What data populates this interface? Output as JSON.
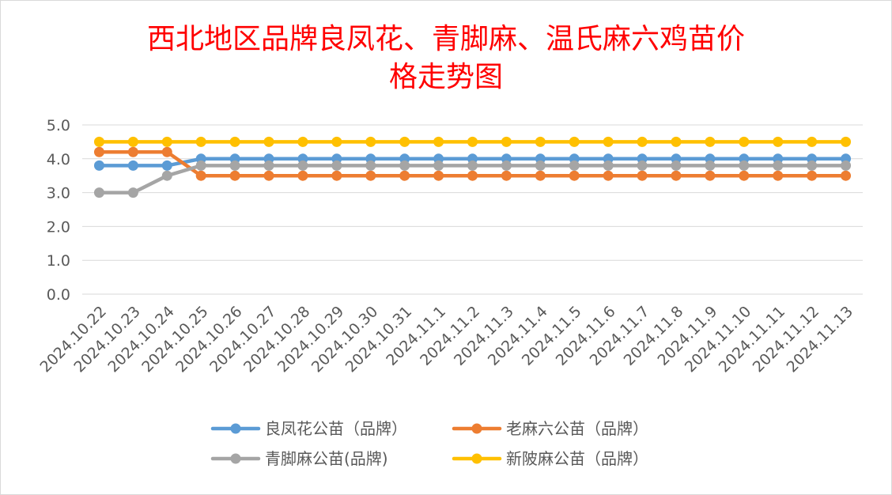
{
  "chart_data": {
    "type": "line",
    "title_lines": [
      "西北地区品牌良凤花、青脚麻、温氏麻六鸡苗价",
      "格走势图"
    ],
    "x": [
      "2024.10.22",
      "2024.10.23",
      "2024.10.24",
      "2024.10.25",
      "2024.10.26",
      "2024.10.27",
      "2024.10.28",
      "2024.10.29",
      "2024.10.30",
      "2024.10.31",
      "2024.11.1",
      "2024.11.2",
      "2024.11.3",
      "2024.11.4",
      "2024.11.5",
      "2024.11.6",
      "2024.11.7",
      "2024.11.8",
      "2024.11.9",
      "2024.11.10",
      "2024.11.11",
      "2024.11.12",
      "2024.11.13"
    ],
    "y_ticks": [
      "0.0",
      "1.0",
      "2.0",
      "3.0",
      "4.0",
      "5.0"
    ],
    "ylim": [
      0,
      5
    ],
    "grid": true,
    "legend_position": "bottom",
    "series": [
      {
        "name": "良凤花公苗（品牌）",
        "color": "#5b9bd5",
        "values": [
          3.8,
          3.8,
          3.8,
          4.0,
          4.0,
          4.0,
          4.0,
          4.0,
          4.0,
          4.0,
          4.0,
          4.0,
          4.0,
          4.0,
          4.0,
          4.0,
          4.0,
          4.0,
          4.0,
          4.0,
          4.0,
          4.0,
          4.0
        ]
      },
      {
        "name": "老麻六公苗（品牌）",
        "color": "#ed7d31",
        "values": [
          4.2,
          4.2,
          4.2,
          3.5,
          3.5,
          3.5,
          3.5,
          3.5,
          3.5,
          3.5,
          3.5,
          3.5,
          3.5,
          3.5,
          3.5,
          3.5,
          3.5,
          3.5,
          3.5,
          3.5,
          3.5,
          3.5,
          3.5
        ]
      },
      {
        "name": "青脚麻公苗(品牌)",
        "color": "#a5a5a5",
        "values": [
          3.0,
          3.0,
          3.5,
          3.8,
          3.8,
          3.8,
          3.8,
          3.8,
          3.8,
          3.8,
          3.8,
          3.8,
          3.8,
          3.8,
          3.8,
          3.8,
          3.8,
          3.8,
          3.8,
          3.8,
          3.8,
          3.8,
          3.8
        ]
      },
      {
        "name": "新陂麻公苗（品牌）",
        "color": "#ffc000",
        "values": [
          4.5,
          4.5,
          4.5,
          4.5,
          4.5,
          4.5,
          4.5,
          4.5,
          4.5,
          4.5,
          4.5,
          4.5,
          4.5,
          4.5,
          4.5,
          4.5,
          4.5,
          4.5,
          4.5,
          4.5,
          4.5,
          4.5,
          4.5
        ]
      }
    ]
  }
}
